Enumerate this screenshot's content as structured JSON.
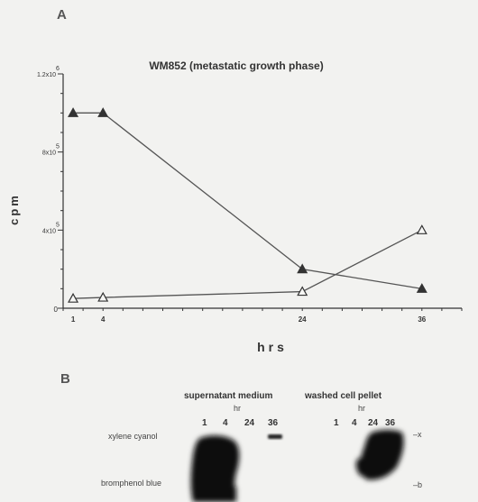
{
  "panel_a": {
    "letter": "A"
  },
  "panel_b": {
    "letter": "B",
    "supernatant_title": "supernatant medium",
    "supernatant_unit": "hr",
    "supernatant_lanes": [
      "1",
      "4",
      "24",
      "36"
    ],
    "pellet_title": "washed cell pellet",
    "pellet_unit": "hr",
    "pellet_lanes": [
      "1",
      "4",
      "24",
      "36"
    ],
    "marker_top": "xylene cyanol",
    "marker_bottom": "bromphenol blue",
    "marker_x": "–x",
    "marker_b": "–b"
  },
  "chart_data": {
    "type": "line",
    "title": "WM852 (metastatic growth phase)",
    "xlabel": "hrs",
    "ylabel": "cpm",
    "x": [
      1,
      4,
      24,
      36
    ],
    "xlim": [
      0,
      40
    ],
    "ylim": [
      0,
      1200000
    ],
    "x_ticks": [
      "1",
      "4",
      "24",
      "36"
    ],
    "y_ticks": [
      {
        "value": 400000,
        "mantissa": "4x10",
        "exp": "5"
      },
      {
        "value": 800000,
        "mantissa": "8x10",
        "exp": "5"
      },
      {
        "value": 1200000,
        "mantissa": "1.2x10",
        "exp": "6"
      }
    ],
    "y_zero": "0",
    "series": [
      {
        "marker": "filled-triangle",
        "values": [
          1000000,
          1000000,
          200000,
          100000
        ]
      },
      {
        "marker": "open-triangle",
        "values": [
          50000,
          55000,
          85000,
          400000
        ]
      }
    ],
    "colors": {
      "line": "#555555",
      "marker": "#333333"
    }
  }
}
